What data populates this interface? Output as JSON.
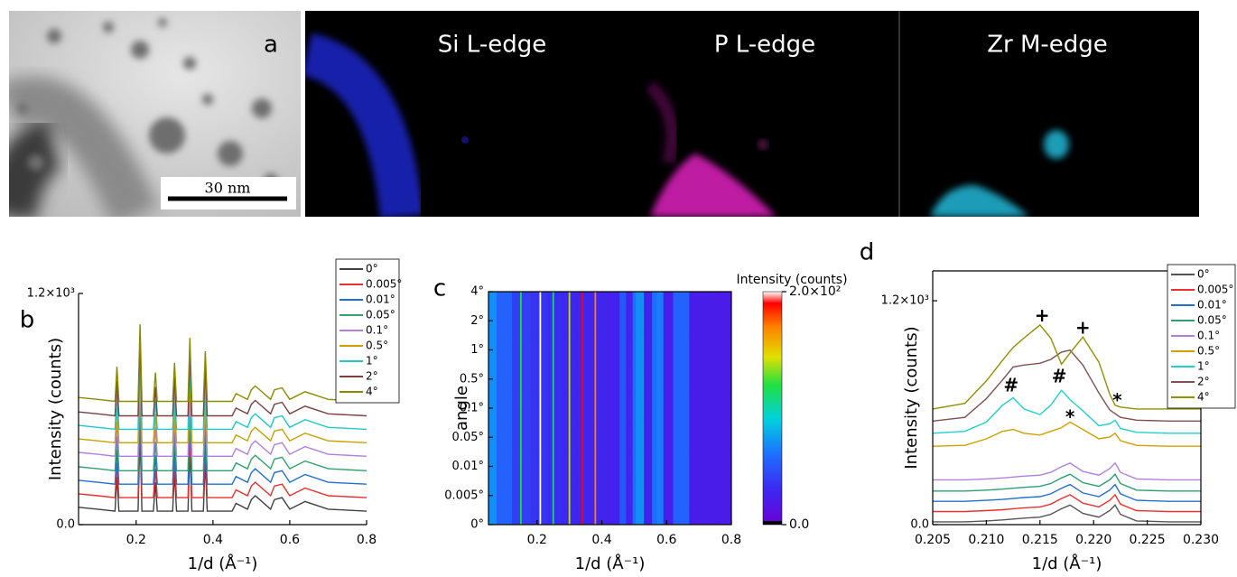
{
  "images": {
    "label": "a",
    "scale_bar": "30 nm",
    "maps": [
      "Si L-edge",
      "P L-edge",
      "Zr M-edge"
    ]
  },
  "chart_data": [
    {
      "type": "line",
      "panel_label": "b",
      "xlabel": "1/d (Å⁻¹)",
      "ylabel": "Intensity (counts)",
      "x": [
        0.05,
        0.1,
        0.145,
        0.15,
        0.155,
        0.205,
        0.21,
        0.215,
        0.245,
        0.25,
        0.255,
        0.295,
        0.3,
        0.305,
        0.335,
        0.34,
        0.345,
        0.375,
        0.38,
        0.385,
        0.45,
        0.46,
        0.49,
        0.5,
        0.51,
        0.55,
        0.56,
        0.58,
        0.6,
        0.64,
        0.7,
        0.8
      ],
      "xlim": [
        0.05,
        0.8
      ],
      "xticks": [
        0.2,
        0.4,
        0.6,
        0.8
      ],
      "ylim": [
        0,
        1200
      ],
      "yticks": [
        {
          "value": 0,
          "label": "0.0"
        },
        {
          "value": 1200,
          "label": "1.2×10³"
        }
      ],
      "series": [
        {
          "name": "0°",
          "color": "#404040",
          "values": [
            90,
            80,
            70,
            250,
            70,
            70,
            470,
            70,
            70,
            220,
            70,
            70,
            270,
            70,
            70,
            400,
            70,
            70,
            330,
            70,
            70,
            110,
            80,
            130,
            150,
            80,
            130,
            140,
            80,
            120,
            80,
            70
          ]
        },
        {
          "name": "0.005°",
          "color": "#e8312f",
          "values": [
            160,
            150,
            140,
            320,
            140,
            140,
            540,
            140,
            140,
            290,
            140,
            140,
            340,
            140,
            140,
            470,
            140,
            140,
            400,
            140,
            140,
            180,
            150,
            200,
            220,
            150,
            200,
            210,
            150,
            190,
            150,
            140
          ]
        },
        {
          "name": "0.01°",
          "color": "#1f6fd0",
          "values": [
            230,
            220,
            210,
            390,
            210,
            210,
            610,
            210,
            210,
            360,
            210,
            210,
            410,
            210,
            210,
            540,
            210,
            210,
            470,
            210,
            210,
            250,
            220,
            270,
            290,
            220,
            270,
            280,
            220,
            260,
            220,
            210
          ]
        },
        {
          "name": "0.05°",
          "color": "#2fa36b",
          "values": [
            300,
            290,
            280,
            460,
            280,
            280,
            680,
            280,
            280,
            430,
            280,
            280,
            480,
            280,
            280,
            610,
            280,
            280,
            540,
            280,
            280,
            320,
            290,
            340,
            360,
            290,
            340,
            350,
            290,
            330,
            290,
            280
          ]
        },
        {
          "name": "0.1°",
          "color": "#b07fe0",
          "values": [
            375,
            365,
            355,
            535,
            355,
            355,
            755,
            355,
            355,
            505,
            355,
            355,
            555,
            355,
            355,
            685,
            355,
            355,
            615,
            355,
            355,
            395,
            365,
            415,
            435,
            365,
            415,
            425,
            365,
            405,
            365,
            355
          ]
        },
        {
          "name": "0.5°",
          "color": "#c8a000",
          "values": [
            445,
            435,
            425,
            605,
            425,
            425,
            825,
            425,
            425,
            575,
            425,
            425,
            625,
            425,
            425,
            755,
            425,
            425,
            685,
            425,
            425,
            465,
            435,
            485,
            505,
            435,
            485,
            495,
            435,
            475,
            435,
            425
          ]
        },
        {
          "name": "1°",
          "color": "#1fc8c8",
          "values": [
            515,
            505,
            495,
            675,
            495,
            495,
            895,
            495,
            495,
            645,
            495,
            495,
            695,
            495,
            495,
            825,
            495,
            495,
            755,
            495,
            495,
            535,
            505,
            555,
            575,
            505,
            555,
            565,
            505,
            545,
            505,
            495
          ]
        },
        {
          "name": "2°",
          "color": "#7b4040",
          "values": [
            585,
            575,
            565,
            745,
            565,
            565,
            965,
            565,
            565,
            715,
            565,
            565,
            765,
            565,
            565,
            895,
            565,
            565,
            825,
            565,
            565,
            605,
            575,
            625,
            645,
            575,
            625,
            635,
            575,
            615,
            575,
            565
          ]
        },
        {
          "name": "4°",
          "color": "#8b8b00",
          "values": [
            660,
            650,
            640,
            820,
            640,
            640,
            1040,
            640,
            640,
            790,
            640,
            640,
            840,
            640,
            640,
            970,
            640,
            640,
            900,
            640,
            640,
            680,
            650,
            700,
            720,
            650,
            700,
            710,
            650,
            690,
            650,
            640
          ]
        }
      ]
    },
    {
      "type": "heatmap",
      "panel_label": "c",
      "xlabel": "1/d (Å⁻¹)",
      "ylabel": "angle",
      "x": [
        0.05,
        0.1,
        0.145,
        0.15,
        0.155,
        0.205,
        0.21,
        0.215,
        0.245,
        0.25,
        0.255,
        0.295,
        0.3,
        0.305,
        0.335,
        0.34,
        0.345,
        0.375,
        0.38,
        0.385,
        0.45,
        0.46,
        0.49,
        0.5,
        0.51,
        0.55,
        0.56,
        0.58,
        0.6,
        0.64,
        0.7,
        0.8
      ],
      "xlim": [
        0.05,
        0.8
      ],
      "xticks": [
        0.2,
        0.4,
        0.6,
        0.8
      ],
      "categories": [
        "0°",
        "0.005°",
        "0.01°",
        "0.05°",
        "0.1°",
        "0.5°",
        "1°",
        "2°",
        "4°"
      ],
      "z": [
        [
          70,
          55,
          40,
          120,
          40,
          35,
          200,
          35,
          32,
          110,
          32,
          30,
          140,
          30,
          28,
          190,
          28,
          27,
          170,
          27,
          25,
          50,
          25,
          60,
          70,
          24,
          60,
          65,
          23,
          55,
          22,
          20
        ],
        [
          70,
          55,
          40,
          120,
          40,
          35,
          200,
          35,
          32,
          110,
          32,
          30,
          140,
          30,
          28,
          190,
          28,
          27,
          170,
          27,
          25,
          50,
          25,
          60,
          70,
          24,
          60,
          65,
          23,
          55,
          22,
          20
        ],
        [
          70,
          55,
          40,
          120,
          40,
          35,
          200,
          35,
          32,
          110,
          32,
          30,
          140,
          30,
          28,
          190,
          28,
          27,
          170,
          27,
          25,
          50,
          25,
          60,
          70,
          24,
          60,
          65,
          23,
          55,
          22,
          20
        ],
        [
          70,
          55,
          40,
          120,
          40,
          35,
          200,
          35,
          32,
          110,
          32,
          30,
          140,
          30,
          28,
          190,
          28,
          27,
          170,
          27,
          25,
          50,
          25,
          60,
          70,
          24,
          60,
          65,
          23,
          55,
          22,
          20
        ],
        [
          70,
          55,
          40,
          120,
          40,
          35,
          200,
          35,
          32,
          110,
          32,
          30,
          140,
          30,
          28,
          190,
          28,
          27,
          170,
          27,
          25,
          50,
          25,
          60,
          70,
          24,
          60,
          65,
          23,
          55,
          22,
          20
        ],
        [
          70,
          55,
          40,
          120,
          40,
          35,
          200,
          35,
          32,
          110,
          32,
          30,
          140,
          30,
          28,
          190,
          28,
          27,
          170,
          27,
          25,
          50,
          25,
          60,
          70,
          24,
          60,
          65,
          23,
          55,
          22,
          20
        ],
        [
          70,
          55,
          40,
          120,
          40,
          35,
          200,
          35,
          32,
          110,
          32,
          30,
          140,
          30,
          28,
          190,
          28,
          27,
          170,
          27,
          25,
          50,
          25,
          60,
          70,
          24,
          60,
          65,
          23,
          55,
          22,
          20
        ],
        [
          70,
          55,
          40,
          120,
          40,
          35,
          200,
          35,
          32,
          110,
          32,
          30,
          140,
          30,
          28,
          190,
          28,
          27,
          170,
          27,
          25,
          50,
          25,
          60,
          70,
          24,
          60,
          65,
          23,
          55,
          22,
          20
        ],
        [
          70,
          55,
          40,
          120,
          40,
          35,
          200,
          35,
          32,
          110,
          32,
          30,
          140,
          30,
          28,
          190,
          28,
          27,
          170,
          27,
          25,
          50,
          25,
          60,
          70,
          24,
          60,
          65,
          23,
          55,
          22,
          20
        ]
      ],
      "colorbar": {
        "title": "Intensity (counts)",
        "lim": [
          0,
          200
        ],
        "ticks": [
          {
            "value": 0,
            "label": "0.0"
          },
          {
            "value": 200,
            "label": "2.0×10²"
          }
        ]
      }
    },
    {
      "type": "line",
      "panel_label": "d",
      "xlabel": "1/d (Å⁻¹)",
      "ylabel": "Intensity (counts)",
      "x": [
        0.205,
        0.208,
        0.21,
        0.2115,
        0.2125,
        0.2135,
        0.215,
        0.216,
        0.217,
        0.2178,
        0.219,
        0.2205,
        0.2215,
        0.222,
        0.2225,
        0.224,
        0.227,
        0.23
      ],
      "xlim": [
        0.205,
        0.23
      ],
      "xticks": [
        0.205,
        {
          "value": 0.21,
          "label": "0.210"
        },
        0.215,
        {
          "value": 0.22,
          "label": "0.220"
        },
        0.225,
        {
          "value": 0.23,
          "label": "0.230"
        }
      ],
      "ylim": [
        0,
        1360
      ],
      "yticks": [
        {
          "value": 0,
          "label": "0.0"
        },
        {
          "value": 1200,
          "label": "1.2×10³"
        }
      ],
      "annotations": [
        "+",
        "+",
        "#",
        "#",
        "*",
        "*"
      ],
      "series": [
        {
          "name": "0°",
          "color": "#555555",
          "values": [
            15,
            15,
            20,
            25,
            30,
            35,
            40,
            55,
            85,
            105,
            60,
            40,
            75,
            105,
            55,
            20,
            15,
            15
          ]
        },
        {
          "name": "0.005°",
          "color": "#ee3030",
          "values": [
            70,
            70,
            75,
            80,
            85,
            90,
            95,
            110,
            140,
            160,
            115,
            95,
            130,
            160,
            110,
            75,
            70,
            70
          ]
        },
        {
          "name": "0.01°",
          "color": "#2070d0",
          "values": [
            125,
            125,
            130,
            135,
            140,
            145,
            150,
            165,
            195,
            215,
            170,
            150,
            185,
            215,
            165,
            130,
            125,
            125
          ]
        },
        {
          "name": "0.05°",
          "color": "#2ca070",
          "values": [
            180,
            180,
            185,
            190,
            195,
            200,
            205,
            220,
            250,
            270,
            225,
            205,
            240,
            270,
            220,
            185,
            180,
            180
          ]
        },
        {
          "name": "0.1°",
          "color": "#b080e0",
          "values": [
            240,
            240,
            245,
            250,
            255,
            260,
            265,
            280,
            310,
            330,
            285,
            265,
            300,
            330,
            280,
            245,
            240,
            240
          ]
        },
        {
          "name": "0.5°",
          "color": "#d0a000",
          "values": [
            420,
            425,
            460,
            500,
            510,
            490,
            480,
            500,
            520,
            550,
            510,
            460,
            470,
            490,
            450,
            425,
            420,
            420
          ]
        },
        {
          "name": "1°",
          "color": "#20d0d0",
          "values": [
            490,
            500,
            550,
            640,
            680,
            620,
            590,
            640,
            720,
            670,
            610,
            530,
            540,
            560,
            515,
            495,
            490,
            490
          ]
        },
        {
          "name": "2°",
          "color": "#805050",
          "values": [
            555,
            575,
            675,
            775,
            845,
            855,
            865,
            885,
            925,
            935,
            855,
            705,
            615,
            595,
            575,
            560,
            555,
            555
          ]
        },
        {
          "name": "4°",
          "color": "#909000",
          "values": [
            620,
            650,
            770,
            880,
            950,
            1000,
            1070,
            1000,
            860,
            920,
            1005,
            870,
            700,
            640,
            630,
            620,
            620,
            620
          ]
        }
      ]
    }
  ]
}
